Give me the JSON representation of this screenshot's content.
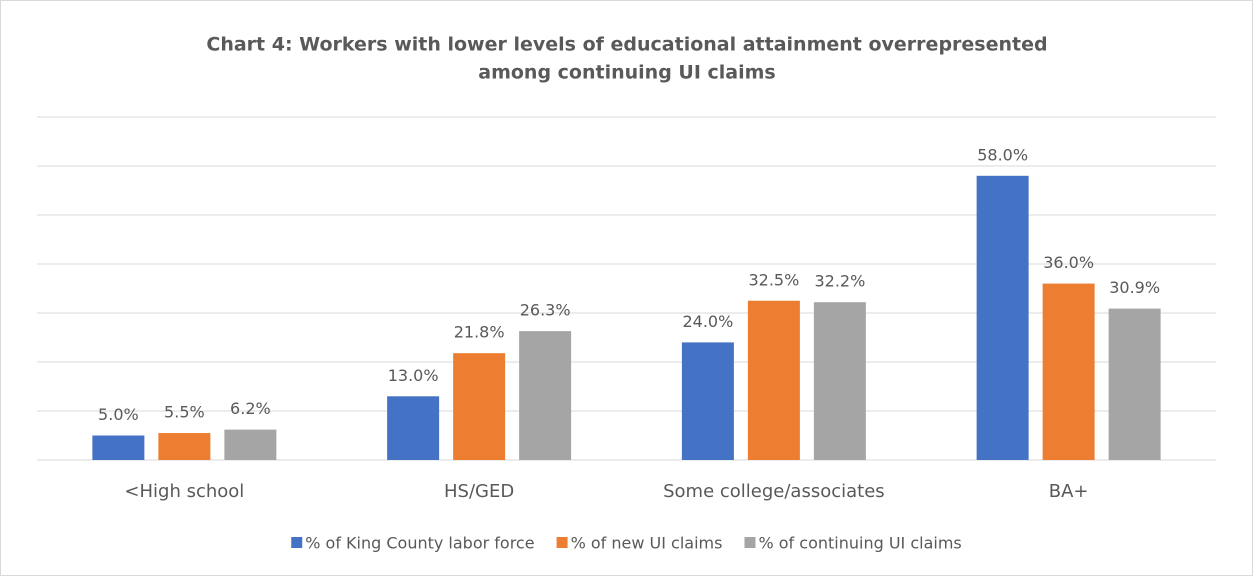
{
  "chart_data": {
    "type": "bar",
    "title": [
      "Chart 4: Workers with lower levels of educational attainment overrepresented",
      "among continuing UI claims"
    ],
    "categories": [
      "<High school",
      "HS/GED",
      "Some college/associates",
      "BA+"
    ],
    "series": [
      {
        "name": "% of King County labor force",
        "color": "#4472c4",
        "values": [
          5.0,
          13.0,
          24.0,
          58.0
        ],
        "value_labels": [
          "5.0%",
          "13.0%",
          "24.0%",
          "58.0%"
        ]
      },
      {
        "name": "% of new UI claims",
        "color": "#ed7d31",
        "values": [
          5.5,
          21.8,
          32.5,
          36.0
        ],
        "value_labels": [
          "5.5%",
          "21.8%",
          "32.5%",
          "36.0%"
        ]
      },
      {
        "name": "% of continuing UI claims",
        "color": "#a5a5a5",
        "values": [
          6.2,
          26.3,
          32.2,
          30.9
        ],
        "value_labels": [
          "6.2%",
          "26.3%",
          "32.2%",
          "30.9%"
        ]
      }
    ],
    "ylim": [
      0,
      70
    ],
    "yticks": [
      0,
      10,
      20,
      30,
      40,
      50,
      60,
      70
    ],
    "grid": true,
    "legend": "bottom"
  }
}
